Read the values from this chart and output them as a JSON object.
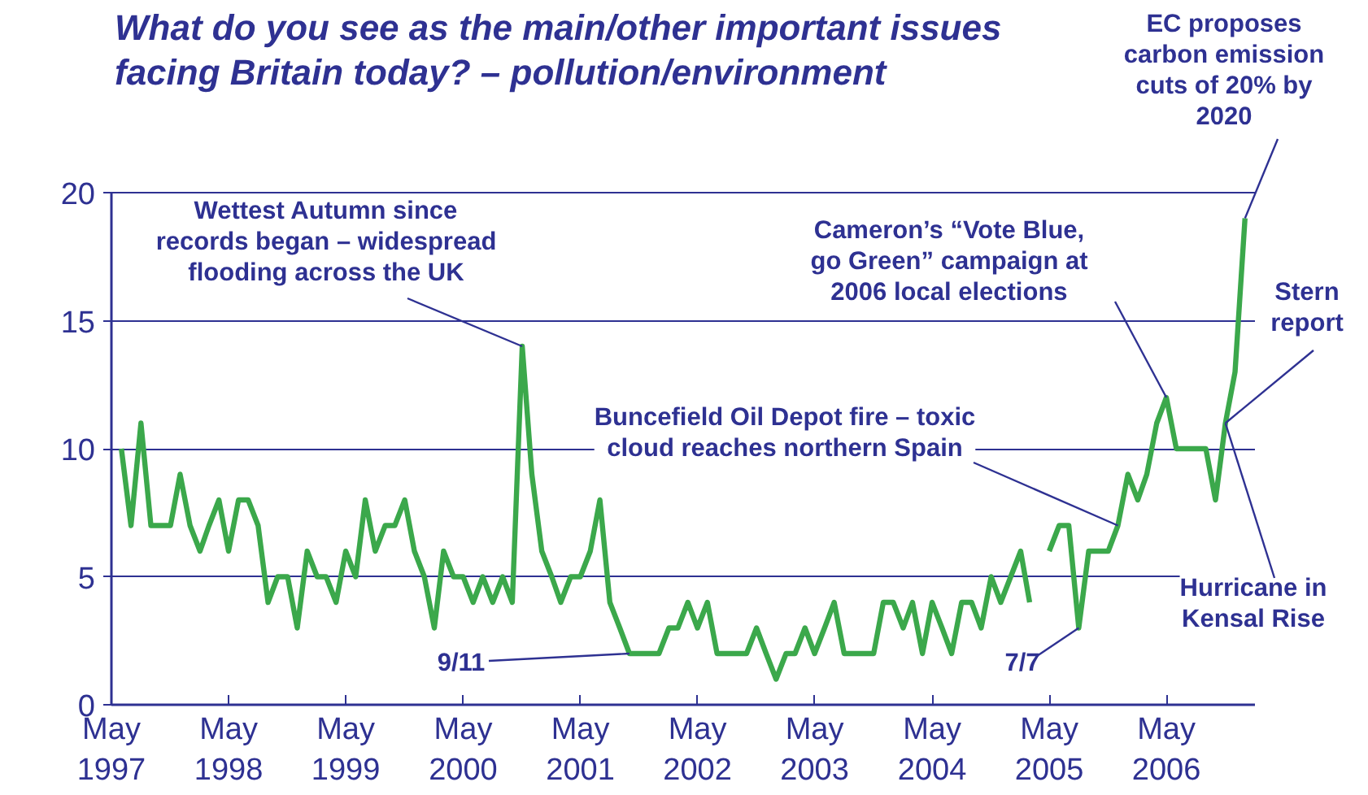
{
  "chart_data": {
    "type": "line",
    "title": "What do you see as the main/other important issues\nfacing Britain today? – pollution/environment",
    "x": [
      "1997-06",
      "1997-07",
      "1997-08",
      "1997-09",
      "1997-10",
      "1997-11",
      "1997-12",
      "1998-01",
      "1998-02",
      "1998-03",
      "1998-04",
      "1998-05",
      "1998-06",
      "1998-07",
      "1998-08",
      "1998-09",
      "1998-10",
      "1998-11",
      "1998-12",
      "1999-01",
      "1999-02",
      "1999-03",
      "1999-04",
      "1999-05",
      "1999-06",
      "1999-07",
      "1999-08",
      "1999-09",
      "1999-10",
      "1999-11",
      "1999-12",
      "2000-01",
      "2000-02",
      "2000-03",
      "2000-04",
      "2000-05",
      "2000-06",
      "2000-07",
      "2000-08",
      "2000-09",
      "2000-10",
      "2000-11",
      "2000-12",
      "2001-01",
      "2001-02",
      "2001-03",
      "2001-04",
      "2001-05",
      "2001-06",
      "2001-07",
      "2001-08",
      "2001-09",
      "2001-10",
      "2001-11",
      "2001-12",
      "2002-01",
      "2002-02",
      "2002-03",
      "2002-04",
      "2002-05",
      "2002-06",
      "2002-07",
      "2002-08",
      "2002-09",
      "2002-10",
      "2002-11",
      "2002-12",
      "2003-01",
      "2003-02",
      "2003-03",
      "2003-04",
      "2003-05",
      "2003-06",
      "2003-07",
      "2003-08",
      "2003-09",
      "2003-10",
      "2003-11",
      "2003-12",
      "2004-01",
      "2004-02",
      "2004-03",
      "2004-04",
      "2004-05",
      "2004-06",
      "2004-07",
      "2004-08",
      "2004-09",
      "2004-10",
      "2004-11",
      "2004-12",
      "2005-01",
      "2005-02",
      "2005-03",
      "2005-04",
      "2005-05",
      "2005-06",
      "2005-07",
      "2005-08",
      "2005-09",
      "2005-10",
      "2005-11",
      "2005-12",
      "2006-01",
      "2006-02",
      "2006-03",
      "2006-04",
      "2006-05",
      "2006-06",
      "2006-07",
      "2006-08",
      "2006-09",
      "2006-10",
      "2006-11",
      "2006-12",
      "2007-01"
    ],
    "series": [
      {
        "color": "#3ba84b",
        "values": [
          10,
          7,
          11,
          7,
          7,
          7,
          9,
          7,
          6,
          7,
          8,
          6,
          8,
          8,
          7,
          4,
          5,
          5,
          3,
          6,
          5,
          5,
          4,
          6,
          5,
          8,
          6,
          7,
          7,
          8,
          6,
          5,
          3,
          6,
          5,
          5,
          4,
          5,
          4,
          5,
          4,
          14,
          9,
          6,
          5,
          4,
          5,
          5,
          6,
          8,
          4,
          3,
          2,
          2,
          2,
          2,
          3,
          3,
          4,
          3,
          4,
          2,
          2,
          2,
          2,
          3,
          2,
          1,
          2,
          2,
          3,
          2,
          3,
          4,
          2,
          2,
          2,
          2,
          4,
          4,
          3,
          4,
          2,
          4,
          3,
          2,
          4,
          4,
          3,
          5,
          4,
          5,
          6,
          4,
          null,
          6,
          7,
          7,
          3,
          6,
          6,
          6,
          7,
          9,
          8,
          9,
          11,
          12,
          10,
          10,
          10,
          10,
          8,
          11,
          13,
          19
        ]
      }
    ],
    "xlim": [
      "1997-05",
      "2007-02"
    ],
    "xticks": [
      {
        "value": "1997-05",
        "label": "May\n1997"
      },
      {
        "value": "1998-05",
        "label": "May\n1998"
      },
      {
        "value": "1999-05",
        "label": "May\n1999"
      },
      {
        "value": "2000-05",
        "label": "May\n2000"
      },
      {
        "value": "2001-05",
        "label": "May\n2001"
      },
      {
        "value": "2002-05",
        "label": "May\n2002"
      },
      {
        "value": "2003-05",
        "label": "May\n2003"
      },
      {
        "value": "2004-05",
        "label": "May\n2004"
      },
      {
        "value": "2005-05",
        "label": "May\n2005"
      },
      {
        "value": "2006-05",
        "label": "May\n2006"
      }
    ],
    "ylim": [
      0,
      20
    ],
    "yticks": [
      0,
      5,
      10,
      15,
      20
    ],
    "grid": "y",
    "annotations": [
      {
        "text": "Wettest Autumn since\nrecords began – widespread\nflooding across the UK",
        "x": "2000-11",
        "y": 14
      },
      {
        "text": "9/11",
        "x": "2001-10",
        "y": 2
      },
      {
        "text": "Buncefield Oil Depot fire – toxic\ncloud reaches northern Spain",
        "x": "2005-12",
        "y": 7
      },
      {
        "text": "7/7",
        "x": "2005-08",
        "y": 3
      },
      {
        "text": "Cameron’s “Vote Blue,\ngo Green” campaign at\n2006 local elections",
        "x": "2006-05",
        "y": 12
      },
      {
        "text": "Stern\nreport",
        "x": "2006-11",
        "y": 11
      },
      {
        "text": "Hurricane in\nKensal Rise",
        "x": "2006-11",
        "y": 11
      },
      {
        "text": "EC proposes\ncarbon emission\ncuts of 20% by\n2020",
        "x": "2007-01",
        "y": 19
      }
    ]
  }
}
